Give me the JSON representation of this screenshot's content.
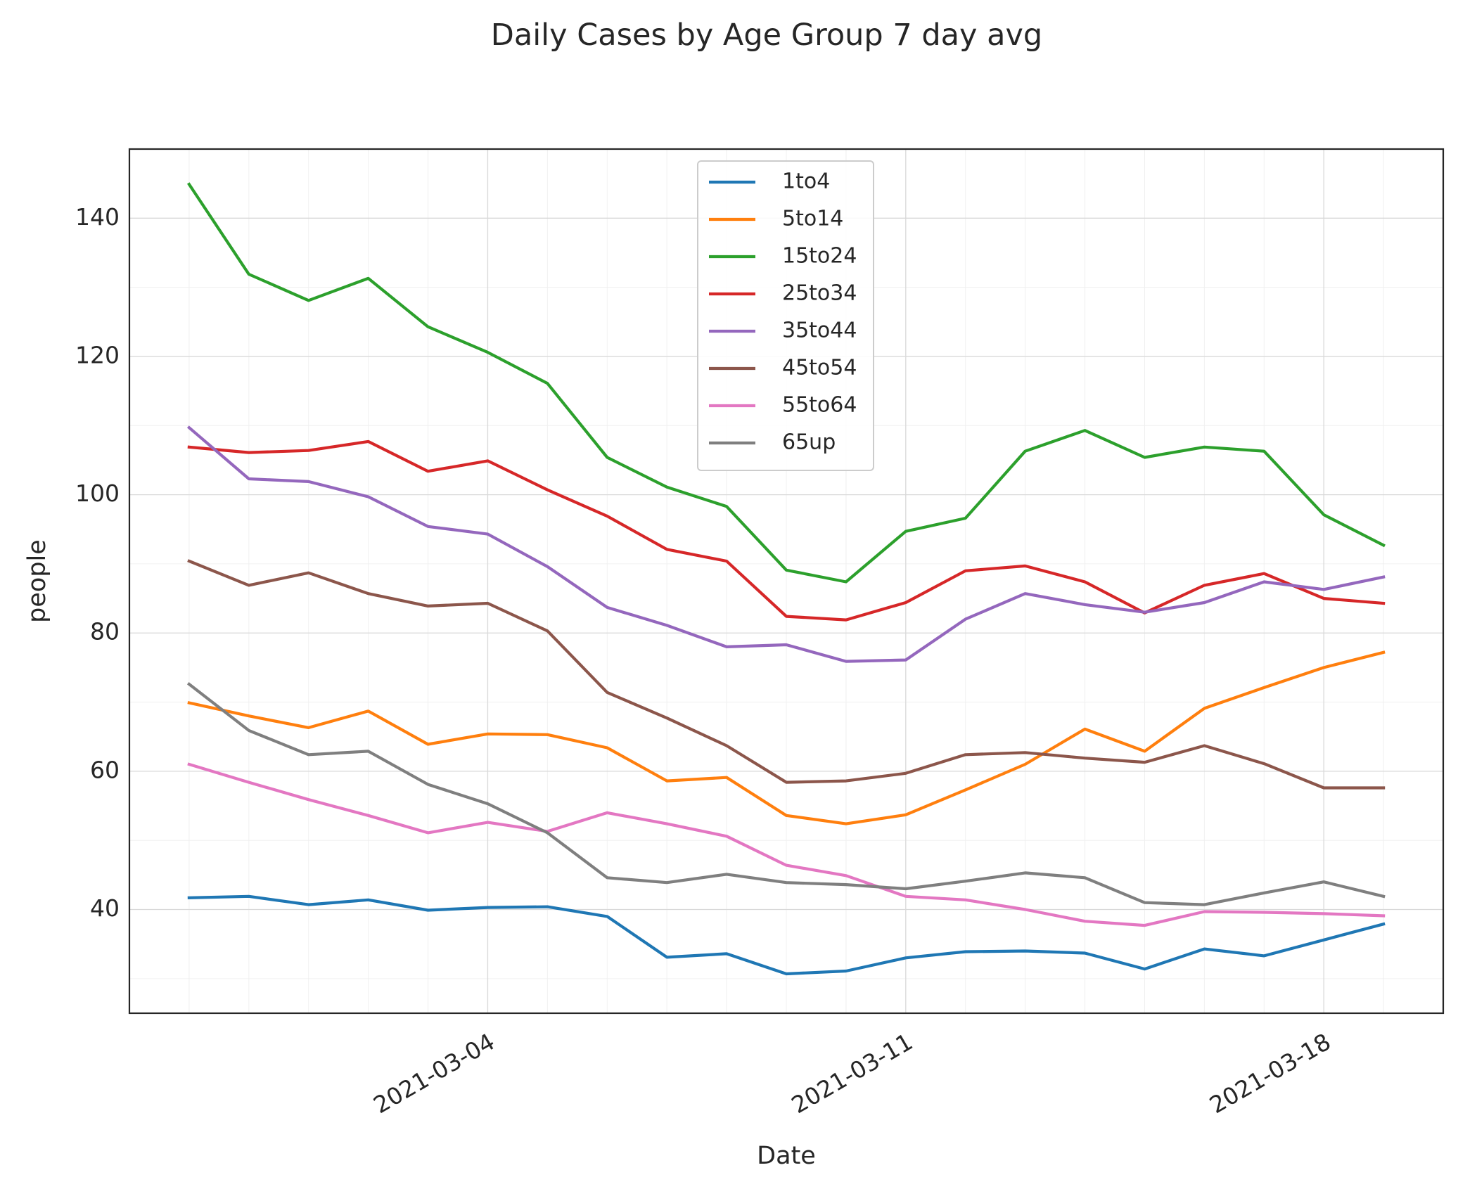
{
  "chart_data": {
    "type": "line",
    "title": "Daily Cases by Age Group 7 day avg",
    "xlabel": "Date",
    "ylabel": "people",
    "x": [
      "2021-02-27",
      "2021-02-28",
      "2021-03-01",
      "2021-03-02",
      "2021-03-03",
      "2021-03-04",
      "2021-03-05",
      "2021-03-06",
      "2021-03-07",
      "2021-03-08",
      "2021-03-09",
      "2021-03-10",
      "2021-03-11",
      "2021-03-12",
      "2021-03-13",
      "2021-03-14",
      "2021-03-15",
      "2021-03-16",
      "2021-03-17",
      "2021-03-18",
      "2021-03-19"
    ],
    "xticks": [
      "2021-03-04",
      "2021-03-11",
      "2021-03-18"
    ],
    "xlim": [
      "2021-02-26",
      "2021-03-20"
    ],
    "ylim": [
      25,
      150
    ],
    "yticks": [
      40,
      60,
      80,
      100,
      120,
      140
    ],
    "grid": true,
    "legend_position": "top-center",
    "series": [
      {
        "name": "1to4",
        "color": "#1f77b4",
        "values": [
          41.7,
          41.9,
          40.7,
          41.4,
          39.9,
          40.3,
          40.4,
          39.0,
          33.1,
          33.6,
          30.7,
          31.1,
          33.0,
          33.9,
          34.0,
          33.7,
          31.4,
          34.3,
          33.3,
          35.6,
          37.9
        ]
      },
      {
        "name": "5to14",
        "color": "#ff7f0e",
        "values": [
          69.9,
          68.0,
          66.3,
          68.7,
          63.9,
          65.4,
          65.3,
          63.4,
          58.6,
          59.1,
          53.6,
          52.4,
          53.7,
          57.3,
          61.0,
          66.1,
          62.9,
          69.1,
          72.1,
          75.0,
          77.2
        ]
      },
      {
        "name": "15to24",
        "color": "#2ca02c",
        "values": [
          144.9,
          131.9,
          128.1,
          131.3,
          124.3,
          120.6,
          116.1,
          105.4,
          101.1,
          98.3,
          89.1,
          87.4,
          94.7,
          96.6,
          106.3,
          109.3,
          105.4,
          106.9,
          106.3,
          97.1,
          92.7
        ]
      },
      {
        "name": "25to34",
        "color": "#d62728",
        "values": [
          106.9,
          106.1,
          106.4,
          107.7,
          103.4,
          104.9,
          100.7,
          96.9,
          92.1,
          90.4,
          82.4,
          81.9,
          84.4,
          89.0,
          89.7,
          87.4,
          82.9,
          86.9,
          88.6,
          85.0,
          84.3
        ]
      },
      {
        "name": "35to44",
        "color": "#9467bd",
        "values": [
          109.7,
          102.3,
          101.9,
          99.7,
          95.4,
          94.3,
          89.6,
          83.7,
          81.1,
          78.0,
          78.3,
          75.9,
          76.1,
          82.0,
          85.7,
          84.1,
          83.0,
          84.4,
          87.4,
          86.3,
          88.1
        ]
      },
      {
        "name": "45to54",
        "color": "#8c564b",
        "values": [
          90.4,
          86.9,
          88.7,
          85.7,
          83.9,
          84.3,
          80.3,
          71.4,
          67.7,
          63.7,
          58.4,
          58.6,
          59.7,
          62.4,
          62.7,
          61.9,
          61.3,
          63.7,
          61.1,
          57.6,
          57.6
        ]
      },
      {
        "name": "55to64",
        "color": "#e377c2",
        "values": [
          61.0,
          58.4,
          55.9,
          53.6,
          51.1,
          52.6,
          51.3,
          54.0,
          52.4,
          50.6,
          46.4,
          44.9,
          41.9,
          41.4,
          40.0,
          38.3,
          37.7,
          39.7,
          39.6,
          39.4,
          39.1
        ]
      },
      {
        "name": "65up",
        "color": "#7f7f7f",
        "values": [
          72.6,
          65.9,
          62.4,
          62.9,
          58.1,
          55.3,
          51.1,
          44.6,
          43.9,
          45.1,
          43.9,
          43.6,
          43.0,
          44.1,
          45.3,
          44.6,
          41.0,
          40.7,
          42.4,
          44.0,
          41.9
        ]
      }
    ]
  }
}
